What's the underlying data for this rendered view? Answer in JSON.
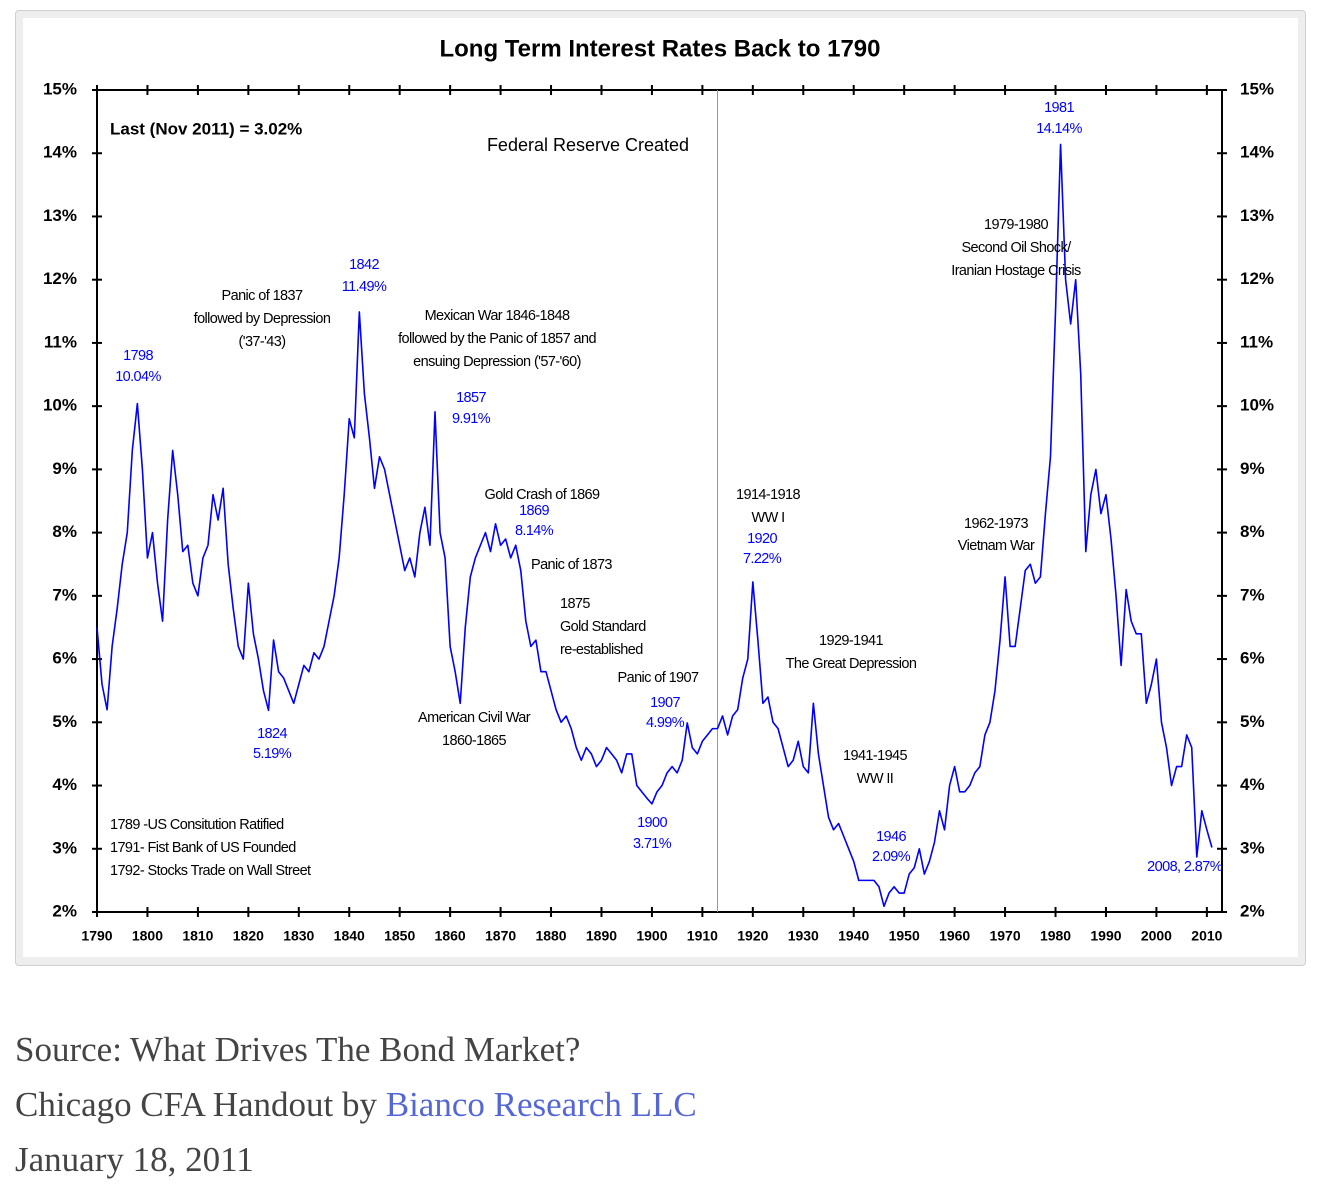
{
  "chart_data": {
    "type": "line",
    "title": "Long Term Interest Rates Back to 1790",
    "x": [
      1790,
      1791,
      1792,
      1793,
      1794,
      1795,
      1796,
      1797,
      1798,
      1799,
      1800,
      1801,
      1802,
      1803,
      1804,
      1805,
      1806,
      1807,
      1808,
      1809,
      1810,
      1811,
      1812,
      1813,
      1814,
      1815,
      1816,
      1817,
      1818,
      1819,
      1820,
      1821,
      1822,
      1823,
      1824,
      1825,
      1826,
      1827,
      1828,
      1829,
      1830,
      1831,
      1832,
      1833,
      1834,
      1835,
      1836,
      1837,
      1838,
      1839,
      1840,
      1841,
      1842,
      1843,
      1844,
      1845,
      1846,
      1847,
      1848,
      1849,
      1850,
      1851,
      1852,
      1853,
      1854,
      1855,
      1856,
      1857,
      1858,
      1859,
      1860,
      1861,
      1862,
      1863,
      1864,
      1865,
      1866,
      1867,
      1868,
      1869,
      1870,
      1871,
      1872,
      1873,
      1874,
      1875,
      1876,
      1877,
      1878,
      1879,
      1880,
      1881,
      1882,
      1883,
      1884,
      1885,
      1886,
      1887,
      1888,
      1889,
      1890,
      1891,
      1892,
      1893,
      1894,
      1895,
      1896,
      1897,
      1898,
      1899,
      1900,
      1901,
      1902,
      1903,
      1904,
      1905,
      1906,
      1907,
      1908,
      1909,
      1910,
      1911,
      1912,
      1913,
      1914,
      1915,
      1916,
      1917,
      1918,
      1919,
      1920,
      1921,
      1922,
      1923,
      1924,
      1925,
      1926,
      1927,
      1928,
      1929,
      1930,
      1931,
      1932,
      1933,
      1934,
      1935,
      1936,
      1937,
      1938,
      1939,
      1940,
      1941,
      1942,
      1943,
      1944,
      1945,
      1946,
      1947,
      1948,
      1949,
      1950,
      1951,
      1952,
      1953,
      1954,
      1955,
      1956,
      1957,
      1958,
      1959,
      1960,
      1961,
      1962,
      1963,
      1964,
      1965,
      1966,
      1967,
      1968,
      1969,
      1970,
      1971,
      1972,
      1973,
      1974,
      1975,
      1976,
      1977,
      1978,
      1979,
      1980,
      1981,
      1982,
      1983,
      1984,
      1985,
      1986,
      1987,
      1988,
      1989,
      1990,
      1991,
      1992,
      1993,
      1994,
      1995,
      1996,
      1997,
      1998,
      1999,
      2000,
      2001,
      2002,
      2003,
      2004,
      2005,
      2006,
      2007,
      2008,
      2009,
      2010,
      2011
    ],
    "series": [
      {
        "color": "#0000ff",
        "values": [
          6.5,
          5.6,
          5.2,
          6.2,
          6.8,
          7.5,
          8.0,
          9.3,
          10.04,
          9.0,
          7.6,
          8.0,
          7.2,
          6.6,
          8.2,
          9.3,
          8.6,
          7.7,
          7.8,
          7.2,
          7.0,
          7.6,
          7.8,
          8.6,
          8.2,
          8.7,
          7.5,
          6.8,
          6.2,
          6.0,
          7.2,
          6.4,
          6.0,
          5.5,
          5.19,
          6.3,
          5.8,
          5.7,
          5.5,
          5.3,
          5.6,
          5.9,
          5.8,
          6.1,
          6.0,
          6.2,
          6.6,
          7.0,
          7.6,
          8.6,
          9.8,
          9.5,
          11.49,
          10.2,
          9.5,
          8.7,
          9.2,
          9.0,
          8.6,
          8.2,
          7.8,
          7.4,
          7.6,
          7.3,
          8.0,
          8.4,
          7.8,
          9.91,
          8.0,
          7.6,
          6.2,
          5.8,
          5.3,
          6.5,
          7.3,
          7.6,
          7.8,
          8.0,
          7.7,
          8.14,
          7.8,
          7.9,
          7.6,
          7.8,
          7.4,
          6.6,
          6.2,
          6.3,
          5.8,
          5.8,
          5.5,
          5.2,
          5.0,
          5.1,
          4.9,
          4.6,
          4.4,
          4.6,
          4.5,
          4.3,
          4.4,
          4.6,
          4.5,
          4.4,
          4.2,
          4.5,
          4.5,
          4.0,
          3.9,
          3.8,
          3.71,
          3.9,
          4.0,
          4.2,
          4.3,
          4.2,
          4.4,
          4.99,
          4.6,
          4.5,
          4.7,
          4.8,
          4.9,
          4.9,
          5.1,
          4.8,
          5.1,
          5.2,
          5.7,
          6.0,
          7.22,
          6.3,
          5.3,
          5.4,
          5.0,
          4.9,
          4.6,
          4.3,
          4.4,
          4.7,
          4.3,
          4.2,
          5.3,
          4.5,
          4.0,
          3.5,
          3.3,
          3.4,
          3.2,
          3.0,
          2.8,
          2.5,
          2.5,
          2.5,
          2.5,
          2.4,
          2.09,
          2.3,
          2.4,
          2.3,
          2.3,
          2.6,
          2.7,
          3.0,
          2.6,
          2.8,
          3.1,
          3.6,
          3.3,
          4.0,
          4.3,
          3.9,
          3.9,
          4.0,
          4.2,
          4.3,
          4.8,
          5.0,
          5.5,
          6.3,
          7.3,
          6.2,
          6.2,
          6.8,
          7.4,
          7.5,
          7.2,
          7.3,
          8.3,
          9.2,
          11.5,
          14.14,
          12.0,
          11.3,
          12.0,
          10.5,
          7.7,
          8.6,
          9.0,
          8.3,
          8.6,
          7.9,
          7.0,
          5.9,
          7.1,
          6.6,
          6.4,
          6.4,
          5.3,
          5.6,
          6.0,
          5.0,
          4.6,
          4.0,
          4.3,
          4.3,
          4.8,
          4.6,
          2.87,
          3.6,
          3.3,
          3.02
        ]
      }
    ],
    "xlim": [
      1790,
      2013
    ],
    "xticks": [
      1790,
      1800,
      1810,
      1820,
      1830,
      1840,
      1850,
      1860,
      1870,
      1880,
      1890,
      1900,
      1910,
      1920,
      1930,
      1940,
      1950,
      1960,
      1970,
      1980,
      1990,
      2000,
      2010
    ],
    "ylim": [
      2,
      15
    ],
    "yticks": [
      {
        "value": 2,
        "label": "2%"
      },
      {
        "value": 3,
        "label": "3%"
      },
      {
        "value": 4,
        "label": "4%"
      },
      {
        "value": 5,
        "label": "5%"
      },
      {
        "value": 6,
        "label": "6%"
      },
      {
        "value": 7,
        "label": "7%"
      },
      {
        "value": 8,
        "label": "8%"
      },
      {
        "value": 9,
        "label": "9%"
      },
      {
        "value": 10,
        "label": "10%"
      },
      {
        "value": 11,
        "label": "11%"
      },
      {
        "value": 12,
        "label": "12%"
      },
      {
        "value": 13,
        "label": "13%"
      },
      {
        "value": 14,
        "label": "14%"
      },
      {
        "value": 15,
        "label": "15%"
      }
    ],
    "reference_line": {
      "x": 1913,
      "label": "Federal Reserve Created",
      "color": "#999999"
    },
    "annotations": [
      {
        "lines": [
          "Last (Nov 2011) = 3.02%"
        ],
        "color": "#000000"
      },
      {
        "lines": [
          "1798",
          "10.04%"
        ],
        "color": "#0000ff"
      },
      {
        "lines": [
          "Panic of 1837",
          "followed by Depression",
          "('37-'43)"
        ],
        "color": "#000000"
      },
      {
        "lines": [
          "1842",
          "11.49%"
        ],
        "color": "#0000ff"
      },
      {
        "lines": [
          "Mexican War 1846-1848",
          "followed by the Panic of 1857 and",
          "ensuing Depression ('57-'60)"
        ],
        "color": "#000000"
      },
      {
        "lines": [
          "1857",
          "9.91%"
        ],
        "color": "#0000ff"
      },
      {
        "lines": [
          "Gold Crash of 1869"
        ],
        "color": "#000000"
      },
      {
        "lines": [
          "1869",
          "8.14%"
        ],
        "color": "#0000ff"
      },
      {
        "lines": [
          "Panic of 1873"
        ],
        "color": "#000000"
      },
      {
        "lines": [
          "1875",
          "Gold Standard",
          "re-established"
        ],
        "color": "#000000"
      },
      {
        "lines": [
          "Panic of 1907"
        ],
        "color": "#000000"
      },
      {
        "lines": [
          "1907",
          "4.99%"
        ],
        "color": "#0000ff"
      },
      {
        "lines": [
          "1824",
          "5.19%"
        ],
        "color": "#0000ff"
      },
      {
        "lines": [
          "American Civil War",
          "1860-1865"
        ],
        "color": "#000000"
      },
      {
        "lines": [
          "1900",
          "3.71%"
        ],
        "color": "#0000ff"
      },
      {
        "lines": [
          "1914-1918",
          "WW I"
        ],
        "color": "#000000"
      },
      {
        "lines": [
          "1920",
          "7.22%"
        ],
        "color": "#0000ff"
      },
      {
        "lines": [
          "1929-1941",
          "The Great Depression"
        ],
        "color": "#000000"
      },
      {
        "lines": [
          "1941-1945",
          "WW II"
        ],
        "color": "#000000"
      },
      {
        "lines": [
          "1946",
          "2.09%"
        ],
        "color": "#0000ff"
      },
      {
        "lines": [
          "1962-1973",
          "Vietnam War"
        ],
        "color": "#000000"
      },
      {
        "lines": [
          "1979-1980",
          "Second Oil Shock/",
          "Iranian Hostage Crisis"
        ],
        "color": "#000000"
      },
      {
        "lines": [
          "1981",
          "14.14%"
        ],
        "color": "#0000ff"
      },
      {
        "lines": [
          "2008, 2.87%"
        ],
        "color": "#0000ff"
      },
      {
        "lines": [
          "1789 -US Consitution Ratified",
          "1791- Fist Bank of US Founded",
          "1792- Stocks Trade on Wall Street"
        ],
        "color": "#000000"
      }
    ]
  },
  "caption": {
    "source": "Source: What Drives The Bond Market?",
    "prefix": "Chicago CFA Handout by ",
    "link": "Bianco Research LLC",
    "date": "January 18, 2011"
  }
}
